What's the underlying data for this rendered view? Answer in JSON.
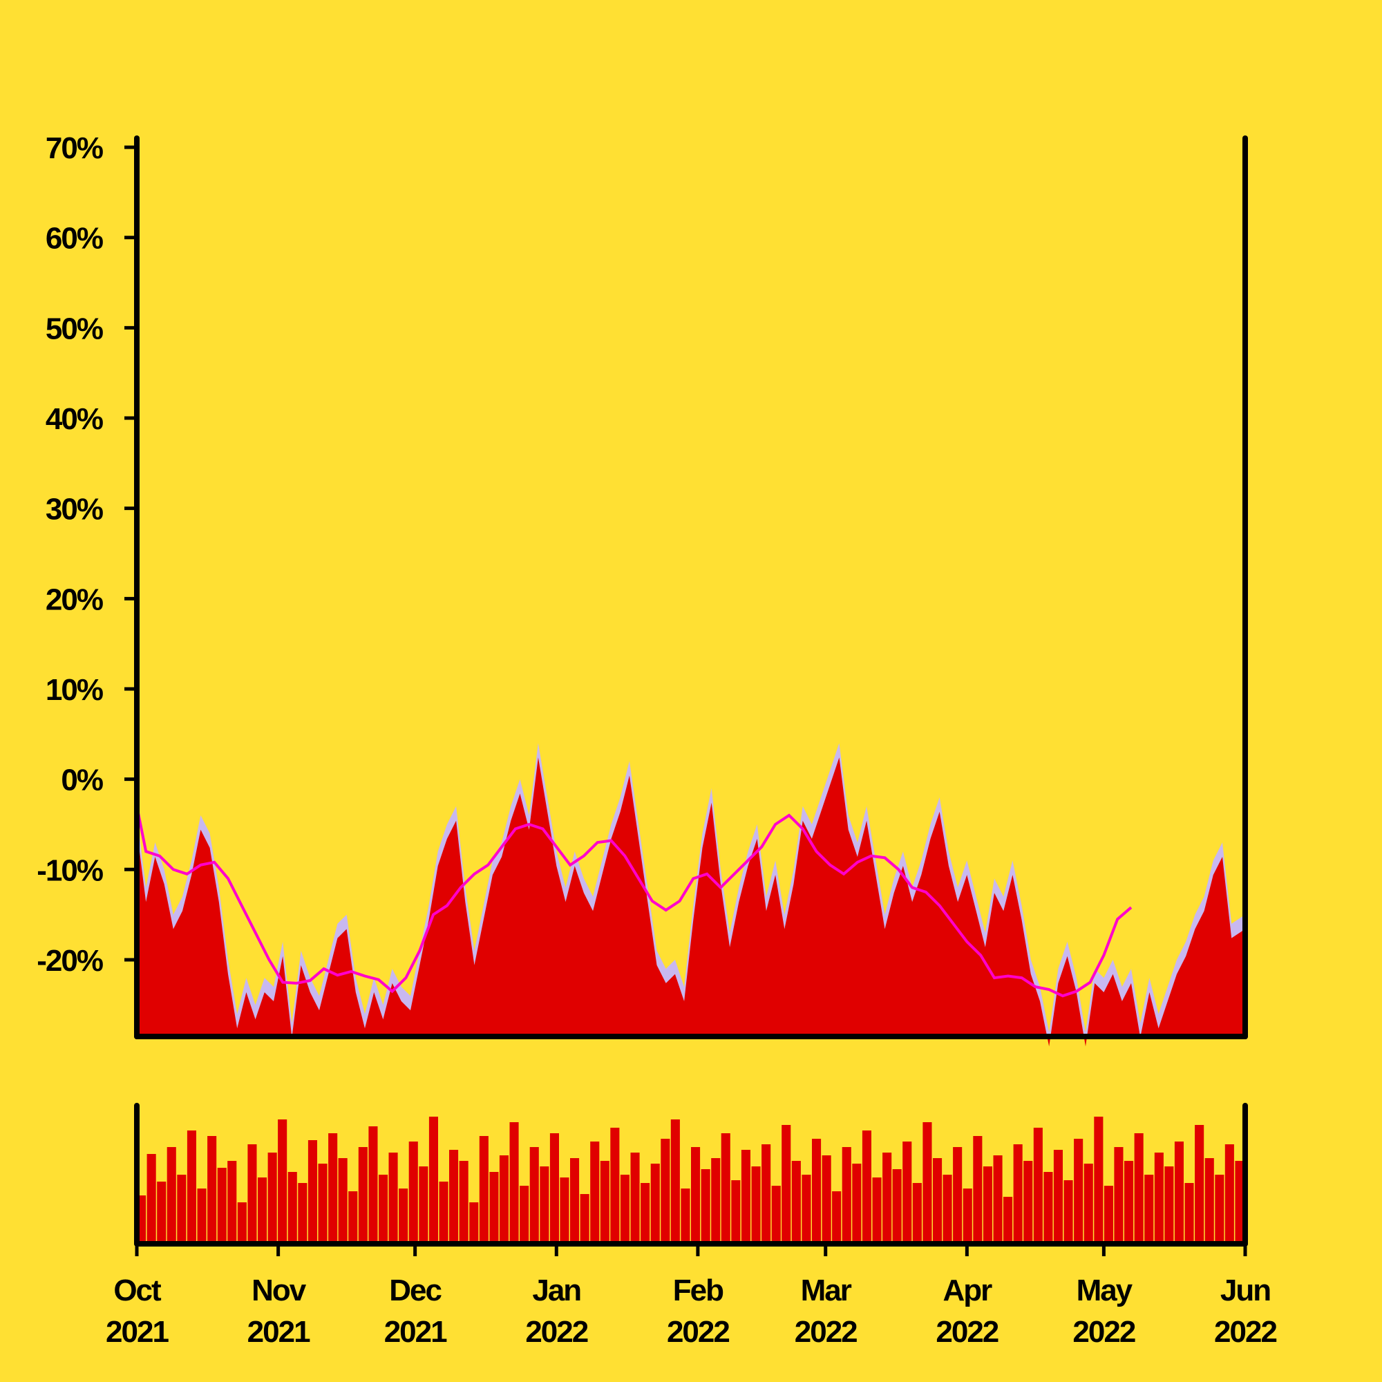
{
  "colors": {
    "background": "#FFE033",
    "fill": "#E00000",
    "band": "#C8B8F0",
    "moving_average": "#FF00CC",
    "axis": "#000000"
  },
  "chart_data": {
    "type": "area",
    "title": "",
    "xlabel": "",
    "ylabel": "",
    "ylim": [
      -28.5,
      71
    ],
    "x_range": [
      "2021-10-01",
      "2022-06-01"
    ],
    "yticks": [
      {
        "value": 70,
        "label": "70%"
      },
      {
        "value": 60,
        "label": "60%"
      },
      {
        "value": 50,
        "label": "50%"
      },
      {
        "value": 40,
        "label": "40%"
      },
      {
        "value": 30,
        "label": "30%"
      },
      {
        "value": 20,
        "label": "20%"
      },
      {
        "value": 10,
        "label": "10%"
      },
      {
        "value": 0,
        "label": "0%"
      },
      {
        "value": -10,
        "label": "-10%"
      },
      {
        "value": -20,
        "label": "-20%"
      }
    ],
    "xticks": [
      {
        "date": "2021-10-01",
        "month": "Oct",
        "year": "2021"
      },
      {
        "date": "2021-11-01",
        "month": "Nov",
        "year": "2021"
      },
      {
        "date": "2021-12-01",
        "month": "Dec",
        "year": "2021"
      },
      {
        "date": "2022-01-01",
        "month": "Jan",
        "year": "2022"
      },
      {
        "date": "2022-02-01",
        "month": "Feb",
        "year": "2022"
      },
      {
        "date": "2022-03-01",
        "month": "Mar",
        "year": "2022"
      },
      {
        "date": "2022-04-01",
        "month": "Apr",
        "year": "2022"
      },
      {
        "date": "2022-05-01",
        "month": "May",
        "year": "2022"
      },
      {
        "date": "2022-06-01",
        "month": "Jun",
        "year": "2022"
      }
    ],
    "series": [
      {
        "type": "area",
        "points": [
          [
            "2021-10-01",
            -4
          ],
          [
            "2021-10-03",
            -12
          ],
          [
            "2021-10-05",
            -7
          ],
          [
            "2021-10-07",
            -10
          ],
          [
            "2021-10-09",
            -15
          ],
          [
            "2021-10-11",
            -13
          ],
          [
            "2021-10-13",
            -9
          ],
          [
            "2021-10-15",
            -4
          ],
          [
            "2021-10-17",
            -6
          ],
          [
            "2021-10-19",
            -12
          ],
          [
            "2021-10-21",
            -20
          ],
          [
            "2021-10-23",
            -26
          ],
          [
            "2021-10-25",
            -22
          ],
          [
            "2021-10-27",
            -25
          ],
          [
            "2021-10-29",
            -22
          ],
          [
            "2021-10-31",
            -23
          ],
          [
            "2021-11-02",
            -18
          ],
          [
            "2021-11-04",
            -27
          ],
          [
            "2021-11-06",
            -19
          ],
          [
            "2021-11-08",
            -22
          ],
          [
            "2021-11-10",
            -24
          ],
          [
            "2021-11-12",
            -20
          ],
          [
            "2021-11-14",
            -16
          ],
          [
            "2021-11-16",
            -15
          ],
          [
            "2021-11-18",
            -22
          ],
          [
            "2021-11-20",
            -26
          ],
          [
            "2021-11-22",
            -22
          ],
          [
            "2021-11-24",
            -25
          ],
          [
            "2021-11-26",
            -21
          ],
          [
            "2021-11-28",
            -23
          ],
          [
            "2021-11-30",
            -24
          ],
          [
            "2021-12-02",
            -19
          ],
          [
            "2021-12-04",
            -14
          ],
          [
            "2021-12-06",
            -8
          ],
          [
            "2021-12-08",
            -5
          ],
          [
            "2021-12-10",
            -3
          ],
          [
            "2021-12-12",
            -12
          ],
          [
            "2021-12-14",
            -19
          ],
          [
            "2021-12-16",
            -14
          ],
          [
            "2021-12-18",
            -9
          ],
          [
            "2021-12-20",
            -7
          ],
          [
            "2021-12-22",
            -3
          ],
          [
            "2021-12-24",
            0
          ],
          [
            "2021-12-26",
            -4
          ],
          [
            "2021-12-28",
            4
          ],
          [
            "2021-12-30",
            -2
          ],
          [
            "2022-01-01",
            -8
          ],
          [
            "2022-01-03",
            -12
          ],
          [
            "2022-01-05",
            -8
          ],
          [
            "2022-01-07",
            -11
          ],
          [
            "2022-01-09",
            -13
          ],
          [
            "2022-01-11",
            -9
          ],
          [
            "2022-01-13",
            -5
          ],
          [
            "2022-01-15",
            -2
          ],
          [
            "2022-01-17",
            2
          ],
          [
            "2022-01-19",
            -5
          ],
          [
            "2022-01-21",
            -12
          ],
          [
            "2022-01-23",
            -19
          ],
          [
            "2022-01-25",
            -21
          ],
          [
            "2022-01-27",
            -20
          ],
          [
            "2022-01-29",
            -23
          ],
          [
            "2022-01-31",
            -14
          ],
          [
            "2022-02-02",
            -6
          ],
          [
            "2022-02-04",
            -1
          ],
          [
            "2022-02-06",
            -10
          ],
          [
            "2022-02-08",
            -17
          ],
          [
            "2022-02-10",
            -12
          ],
          [
            "2022-02-12",
            -8
          ],
          [
            "2022-02-14",
            -5
          ],
          [
            "2022-02-16",
            -13
          ],
          [
            "2022-02-18",
            -9
          ],
          [
            "2022-02-20",
            -15
          ],
          [
            "2022-02-22",
            -10
          ],
          [
            "2022-02-24",
            -3
          ],
          [
            "2022-02-26",
            -5
          ],
          [
            "2022-02-28",
            -2
          ],
          [
            "2022-03-02",
            1
          ],
          [
            "2022-03-04",
            4
          ],
          [
            "2022-03-06",
            -4
          ],
          [
            "2022-03-08",
            -7
          ],
          [
            "2022-03-10",
            -3
          ],
          [
            "2022-03-12",
            -9
          ],
          [
            "2022-03-14",
            -15
          ],
          [
            "2022-03-16",
            -11
          ],
          [
            "2022-03-18",
            -8
          ],
          [
            "2022-03-20",
            -12
          ],
          [
            "2022-03-22",
            -9
          ],
          [
            "2022-03-24",
            -5
          ],
          [
            "2022-03-26",
            -2
          ],
          [
            "2022-03-28",
            -8
          ],
          [
            "2022-03-30",
            -12
          ],
          [
            "2022-04-01",
            -9
          ],
          [
            "2022-04-03",
            -13
          ],
          [
            "2022-04-05",
            -17
          ],
          [
            "2022-04-07",
            -11
          ],
          [
            "2022-04-09",
            -13
          ],
          [
            "2022-04-11",
            -9
          ],
          [
            "2022-04-13",
            -14
          ],
          [
            "2022-04-15",
            -20
          ],
          [
            "2022-04-17",
            -23
          ],
          [
            "2022-04-19",
            -28
          ],
          [
            "2022-04-21",
            -21
          ],
          [
            "2022-04-23",
            -18
          ],
          [
            "2022-04-25",
            -22
          ],
          [
            "2022-04-27",
            -28
          ],
          [
            "2022-04-29",
            -21
          ],
          [
            "2022-05-01",
            -22
          ],
          [
            "2022-05-03",
            -20
          ],
          [
            "2022-05-05",
            -23
          ],
          [
            "2022-05-07",
            -21
          ],
          [
            "2022-05-09",
            -27
          ],
          [
            "2022-05-11",
            -22
          ],
          [
            "2022-05-13",
            -26
          ],
          [
            "2022-05-15",
            -23
          ],
          [
            "2022-05-17",
            -20
          ],
          [
            "2022-05-19",
            -18
          ],
          [
            "2022-05-21",
            -15
          ],
          [
            "2022-05-23",
            -13
          ],
          [
            "2022-05-25",
            -9
          ],
          [
            "2022-05-27",
            -7
          ],
          [
            "2022-05-29",
            -16
          ],
          [
            "2022-06-01",
            -15
          ]
        ]
      },
      {
        "type": "line",
        "points": [
          [
            "2021-10-01",
            -3
          ],
          [
            "2021-10-03",
            -8
          ],
          [
            "2021-10-06",
            -8.5
          ],
          [
            "2021-10-09",
            -10
          ],
          [
            "2021-10-12",
            -10.5
          ],
          [
            "2021-10-15",
            -9.5
          ],
          [
            "2021-10-18",
            -9.2
          ],
          [
            "2021-10-21",
            -11
          ],
          [
            "2021-10-24",
            -14
          ],
          [
            "2021-10-27",
            -17
          ],
          [
            "2021-10-30",
            -20
          ],
          [
            "2021-11-02",
            -22.5
          ],
          [
            "2021-11-05",
            -22.6
          ],
          [
            "2021-11-08",
            -22.3
          ],
          [
            "2021-11-11",
            -21
          ],
          [
            "2021-11-14",
            -21.7
          ],
          [
            "2021-11-17",
            -21.3
          ],
          [
            "2021-11-20",
            -21.8
          ],
          [
            "2021-11-23",
            -22.2
          ],
          [
            "2021-11-26",
            -23.5
          ],
          [
            "2021-11-29",
            -22
          ],
          [
            "2021-12-02",
            -19
          ],
          [
            "2021-12-05",
            -15
          ],
          [
            "2021-12-08",
            -14
          ],
          [
            "2021-12-11",
            -12
          ],
          [
            "2021-12-14",
            -10.5
          ],
          [
            "2021-12-17",
            -9.5
          ],
          [
            "2021-12-20",
            -7.5
          ],
          [
            "2021-12-23",
            -5.5
          ],
          [
            "2021-12-26",
            -5
          ],
          [
            "2021-12-29",
            -5.5
          ],
          [
            "2022-01-01",
            -7.5
          ],
          [
            "2022-01-04",
            -9.5
          ],
          [
            "2022-01-07",
            -8.5
          ],
          [
            "2022-01-10",
            -7
          ],
          [
            "2022-01-13",
            -6.8
          ],
          [
            "2022-01-16",
            -8.5
          ],
          [
            "2022-01-19",
            -11
          ],
          [
            "2022-01-22",
            -13.5
          ],
          [
            "2022-01-25",
            -14.5
          ],
          [
            "2022-01-28",
            -13.5
          ],
          [
            "2022-01-31",
            -11
          ],
          [
            "2022-02-03",
            -10.5
          ],
          [
            "2022-02-06",
            -12
          ],
          [
            "2022-02-09",
            -10.5
          ],
          [
            "2022-02-12",
            -9
          ],
          [
            "2022-02-15",
            -7.5
          ],
          [
            "2022-02-18",
            -5
          ],
          [
            "2022-02-21",
            -4
          ],
          [
            "2022-02-24",
            -5.5
          ],
          [
            "2022-02-27",
            -8
          ],
          [
            "2022-03-02",
            -9.5
          ],
          [
            "2022-03-05",
            -10.5
          ],
          [
            "2022-03-08",
            -9.2
          ],
          [
            "2022-03-11",
            -8.5
          ],
          [
            "2022-03-14",
            -8.7
          ],
          [
            "2022-03-17",
            -10
          ],
          [
            "2022-03-20",
            -12
          ],
          [
            "2022-03-23",
            -12.5
          ],
          [
            "2022-03-26",
            -14
          ],
          [
            "2022-03-29",
            -16
          ],
          [
            "2022-04-01",
            -18
          ],
          [
            "2022-04-04",
            -19.5
          ],
          [
            "2022-04-07",
            -22
          ],
          [
            "2022-04-10",
            -21.8
          ],
          [
            "2022-04-13",
            -22
          ],
          [
            "2022-04-16",
            -23
          ],
          [
            "2022-04-19",
            -23.3
          ],
          [
            "2022-04-22",
            -24
          ],
          [
            "2022-04-25",
            -23.5
          ],
          [
            "2022-04-28",
            -22.5
          ],
          [
            "2022-05-01",
            -19.5
          ],
          [
            "2022-05-04",
            -15.5
          ],
          [
            "2022-05-07",
            -14.2
          ]
        ]
      },
      {
        "type": "bar",
        "values": [
          0.35,
          0.65,
          0.45,
          0.7,
          0.5,
          0.82,
          0.4,
          0.78,
          0.55,
          0.6,
          0.3,
          0.72,
          0.48,
          0.66,
          0.9,
          0.52,
          0.44,
          0.75,
          0.58,
          0.8,
          0.62,
          0.38,
          0.7,
          0.85,
          0.5,
          0.66,
          0.4,
          0.74,
          0.56,
          0.92,
          0.45,
          0.68,
          0.6,
          0.3,
          0.78,
          0.52,
          0.64,
          0.88,
          0.42,
          0.7,
          0.56,
          0.8,
          0.48,
          0.62,
          0.36,
          0.74,
          0.6,
          0.84,
          0.5,
          0.66,
          0.44,
          0.58,
          0.76,
          0.9,
          0.4,
          0.7,
          0.54,
          0.62,
          0.8,
          0.46,
          0.68,
          0.56,
          0.72,
          0.42,
          0.86,
          0.6,
          0.5,
          0.76,
          0.64,
          0.38,
          0.7,
          0.58,
          0.82,
          0.48,
          0.66,
          0.54,
          0.74,
          0.44,
          0.88,
          0.62,
          0.5,
          0.7,
          0.4,
          0.78,
          0.56,
          0.64,
          0.34,
          0.72,
          0.6,
          0.84,
          0.52,
          0.68,
          0.46,
          0.76,
          0.58,
          0.92,
          0.42,
          0.7,
          0.6,
          0.8,
          0.5,
          0.66,
          0.56,
          0.74,
          0.44,
          0.86,
          0.62,
          0.5,
          0.72,
          0.6
        ]
      }
    ]
  }
}
